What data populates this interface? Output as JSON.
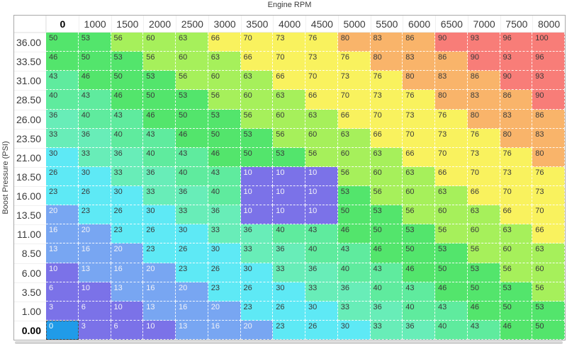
{
  "axes": {
    "x_title": "Engine RPM",
    "y_title": "Boost Pressure (PSI)"
  },
  "table": {
    "columns": [
      "0",
      "1000",
      "1500",
      "2000",
      "2500",
      "3000",
      "3500",
      "4000",
      "4500",
      "5000",
      "5500",
      "6000",
      "6500",
      "7000",
      "7500",
      "8000"
    ],
    "rows": [
      "36.00",
      "33.50",
      "31.00",
      "28.50",
      "26.00",
      "23.50",
      "21.00",
      "18.50",
      "16.00",
      "13.50",
      "11.00",
      "8.50",
      "6.00",
      "3.50",
      "1.00",
      "0.00"
    ],
    "values": [
      [
        50,
        53,
        56,
        60,
        63,
        66,
        70,
        73,
        76,
        80,
        83,
        86,
        90,
        93,
        96,
        100
      ],
      [
        46,
        50,
        53,
        56,
        60,
        63,
        66,
        70,
        73,
        76,
        80,
        83,
        86,
        90,
        93,
        96
      ],
      [
        43,
        46,
        50,
        53,
        56,
        60,
        63,
        66,
        70,
        73,
        76,
        80,
        83,
        86,
        90,
        93
      ],
      [
        40,
        43,
        46,
        50,
        53,
        56,
        60,
        63,
        66,
        70,
        73,
        76,
        80,
        83,
        86,
        90
      ],
      [
        36,
        40,
        43,
        46,
        50,
        53,
        56,
        60,
        63,
        66,
        70,
        73,
        76,
        80,
        83,
        86
      ],
      [
        33,
        36,
        40,
        43,
        46,
        50,
        53,
        56,
        60,
        63,
        66,
        70,
        73,
        76,
        80,
        83
      ],
      [
        30,
        33,
        36,
        40,
        43,
        46,
        50,
        53,
        56,
        60,
        63,
        66,
        70,
        73,
        76,
        80
      ],
      [
        26,
        30,
        33,
        36,
        40,
        43,
        10,
        10,
        10,
        56,
        60,
        63,
        66,
        70,
        73,
        76
      ],
      [
        23,
        26,
        30,
        33,
        36,
        40,
        10,
        10,
        10,
        53,
        56,
        60,
        63,
        66,
        70,
        73
      ],
      [
        20,
        23,
        26,
        30,
        33,
        36,
        10,
        10,
        10,
        50,
        53,
        56,
        60,
        63,
        66,
        70
      ],
      [
        16,
        20,
        23,
        26,
        30,
        33,
        36,
        40,
        43,
        46,
        50,
        53,
        56,
        60,
        63,
        66
      ],
      [
        13,
        16,
        20,
        23,
        26,
        30,
        33,
        36,
        40,
        43,
        46,
        50,
        53,
        56,
        60,
        63
      ],
      [
        10,
        13,
        16,
        20,
        23,
        26,
        30,
        33,
        36,
        40,
        43,
        46,
        50,
        53,
        56,
        60
      ],
      [
        6,
        10,
        13,
        16,
        20,
        23,
        26,
        30,
        33,
        36,
        40,
        43,
        46,
        50,
        53,
        56
      ],
      [
        3,
        6,
        10,
        13,
        16,
        20,
        23,
        26,
        30,
        33,
        36,
        40,
        43,
        46,
        50,
        53
      ],
      [
        0,
        3,
        6,
        10,
        13,
        16,
        20,
        23,
        26,
        30,
        33,
        36,
        40,
        43,
        46,
        50
      ]
    ],
    "selected": {
      "row_index": 15,
      "col_index": 0
    }
  },
  "colors": {
    "selected_bg": "#209be8",
    "selected_fg": "#ffffff",
    "scale": [
      {
        "max": 12,
        "bg": "#7b72e8",
        "fg": "#f2f2f8"
      },
      {
        "max": 22,
        "bg": "#78a6f2",
        "fg": "#f2f2f8"
      },
      {
        "max": 32,
        "bg": "#5ee9f5",
        "fg": "#3a3a3a"
      },
      {
        "max": 38,
        "bg": "#68edb8",
        "fg": "#3a3a3a"
      },
      {
        "max": 44,
        "bg": "#5feb9e",
        "fg": "#3a3a3a"
      },
      {
        "max": 54,
        "bg": "#53e56c",
        "fg": "#3a3a3a"
      },
      {
        "max": 64,
        "bg": "#a6f05b",
        "fg": "#3a3a3a"
      },
      {
        "max": 78,
        "bg": "#f9f25e",
        "fg": "#3a3a3a"
      },
      {
        "max": 88,
        "bg": "#f9b46a",
        "fg": "#3a3a3a"
      },
      {
        "max": 100,
        "bg": "#f87d78",
        "fg": "#3a3a3a"
      }
    ]
  }
}
